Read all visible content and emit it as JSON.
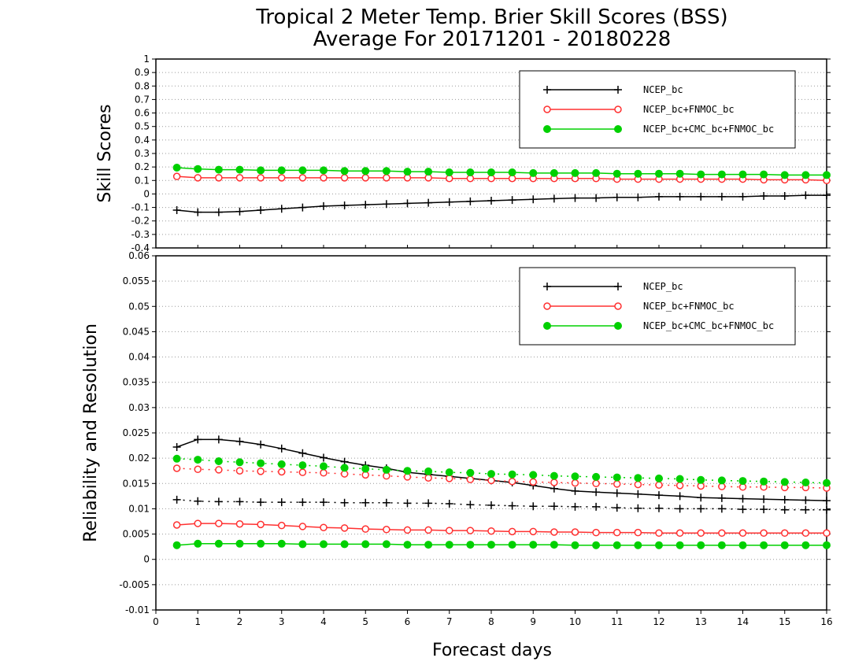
{
  "title": [
    "Tropical 2 Meter Temp. Brier Skill Scores (BSS)",
    "Average For 20171201 - 20180228"
  ],
  "chart_data": [
    {
      "type": "line",
      "ylabel": "Skill Scores",
      "xlabel": "",
      "xlim": [
        0,
        16
      ],
      "ylim": [
        -0.4,
        1
      ],
      "yticks": [
        -0.4,
        -0.3,
        -0.2,
        -0.1,
        0,
        0.1,
        0.2,
        0.3,
        0.4,
        0.5,
        0.6,
        0.7,
        0.8,
        0.9,
        1
      ],
      "ytick_labels": [
        "-0.4",
        "-0.3",
        "-0.2",
        "-0.1",
        "0",
        "0.1",
        "0.2",
        "0.3",
        "0.4",
        "0.5",
        "0.6",
        "0.7",
        "0.8",
        "0.9",
        "1"
      ],
      "grid": true,
      "legend_position": "top-right",
      "x": [
        0.5,
        1,
        1.5,
        2,
        2.5,
        3,
        3.5,
        4,
        4.5,
        5,
        5.5,
        6,
        6.5,
        7,
        7.5,
        8,
        8.5,
        9,
        9.5,
        10,
        10.5,
        11,
        11.5,
        12,
        12.5,
        13,
        13.5,
        14,
        14.5,
        15,
        15.5,
        16
      ],
      "series": [
        {
          "name": "NCEP_bc",
          "color": "#000000",
          "marker": "plus",
          "dash": "solid",
          "values": [
            -0.12,
            -0.135,
            -0.135,
            -0.13,
            -0.12,
            -0.11,
            -0.1,
            -0.09,
            -0.085,
            -0.08,
            -0.075,
            -0.07,
            -0.065,
            -0.06,
            -0.055,
            -0.05,
            -0.045,
            -0.04,
            -0.035,
            -0.03,
            -0.03,
            -0.025,
            -0.025,
            -0.02,
            -0.02,
            -0.02,
            -0.02,
            -0.02,
            -0.015,
            -0.015,
            -0.01,
            -0.01
          ]
        },
        {
          "name": "NCEP_bc+FNMOC_bc",
          "color": "#ff3030",
          "marker": "circle-open",
          "dash": "solid",
          "values": [
            0.13,
            0.12,
            0.12,
            0.12,
            0.12,
            0.12,
            0.12,
            0.12,
            0.12,
            0.12,
            0.12,
            0.12,
            0.12,
            0.115,
            0.115,
            0.115,
            0.115,
            0.115,
            0.115,
            0.115,
            0.115,
            0.11,
            0.11,
            0.11,
            0.11,
            0.11,
            0.11,
            0.11,
            0.105,
            0.105,
            0.105,
            0.1
          ]
        },
        {
          "name": "NCEP_bc+CMC_bc+FNMOC_bc",
          "color": "#00d000",
          "marker": "circle-filled",
          "dash": "solid",
          "values": [
            0.195,
            0.185,
            0.18,
            0.18,
            0.175,
            0.175,
            0.175,
            0.175,
            0.17,
            0.17,
            0.17,
            0.165,
            0.165,
            0.16,
            0.16,
            0.16,
            0.16,
            0.155,
            0.155,
            0.155,
            0.155,
            0.15,
            0.15,
            0.15,
            0.15,
            0.145,
            0.145,
            0.145,
            0.145,
            0.14,
            0.14,
            0.14
          ]
        }
      ]
    },
    {
      "type": "line",
      "ylabel": "Reliability and Resolution",
      "xlabel": "Forecast days",
      "xlim": [
        0,
        16
      ],
      "ylim": [
        -0.01,
        0.06
      ],
      "yticks": [
        -0.01,
        -0.005,
        0,
        0.005,
        0.01,
        0.015,
        0.02,
        0.025,
        0.03,
        0.035,
        0.04,
        0.045,
        0.05,
        0.055,
        0.06
      ],
      "ytick_labels": [
        "-0.01",
        "-0.005",
        "0",
        "0.005",
        "0.01",
        "0.015",
        "0.02",
        "0.025",
        "0.03",
        "0.035",
        "0.04",
        "0.045",
        "0.05",
        "0.055",
        "0.06"
      ],
      "xticks": [
        0,
        1,
        2,
        3,
        4,
        5,
        6,
        7,
        8,
        9,
        10,
        11,
        12,
        13,
        14,
        15,
        16
      ],
      "xtick_labels": [
        "0",
        "1",
        "2",
        "3",
        "4",
        "5",
        "6",
        "7",
        "8",
        "9",
        "10",
        "11",
        "12",
        "13",
        "14",
        "15",
        "16"
      ],
      "grid": true,
      "legend_position": "top-right",
      "x": [
        0.5,
        1,
        1.5,
        2,
        2.5,
        3,
        3.5,
        4,
        4.5,
        5,
        5.5,
        6,
        6.5,
        7,
        7.5,
        8,
        8.5,
        9,
        9.5,
        10,
        10.5,
        11,
        11.5,
        12,
        12.5,
        13,
        13.5,
        14,
        14.5,
        15,
        15.5,
        16
      ],
      "legend": [
        {
          "name": "NCEP_bc",
          "color": "#000000",
          "marker": "plus"
        },
        {
          "name": "NCEP_bc+FNMOC_bc",
          "color": "#ff3030",
          "marker": "circle-open"
        },
        {
          "name": "NCEP_bc+CMC_bc+FNMOC_bc",
          "color": "#00d000",
          "marker": "circle-filled"
        }
      ],
      "series": [
        {
          "group": "NCEP_bc",
          "kind": "resolution",
          "color": "#000000",
          "marker": "plus",
          "dash": "solid",
          "values": [
            0.0222,
            0.0237,
            0.0237,
            0.0233,
            0.0227,
            0.0219,
            0.021,
            0.0201,
            0.0193,
            0.0186,
            0.018,
            0.0172,
            0.0168,
            0.0164,
            0.016,
            0.0156,
            0.0152,
            0.0146,
            0.014,
            0.0135,
            0.0133,
            0.0131,
            0.0129,
            0.0127,
            0.0125,
            0.0122,
            0.0121,
            0.012,
            0.0119,
            0.0118,
            0.0117,
            0.0116
          ]
        },
        {
          "group": "NCEP_bc",
          "kind": "reliability",
          "color": "#000000",
          "marker": "plus",
          "dash": "dotted",
          "values": [
            0.0118,
            0.0115,
            0.0114,
            0.0114,
            0.0113,
            0.0113,
            0.0113,
            0.0113,
            0.0112,
            0.0112,
            0.0112,
            0.0111,
            0.0111,
            0.011,
            0.0108,
            0.0107,
            0.0106,
            0.0105,
            0.0105,
            0.0104,
            0.0104,
            0.0102,
            0.0101,
            0.0101,
            0.01,
            0.01,
            0.01,
            0.0099,
            0.0099,
            0.0098,
            0.0098,
            0.0098
          ]
        },
        {
          "group": "NCEP_bc+FNMOC_bc",
          "kind": "resolution",
          "color": "#ff3030",
          "marker": "circle-open",
          "dash": "dotted",
          "values": [
            0.018,
            0.0178,
            0.0177,
            0.0175,
            0.0174,
            0.0173,
            0.0172,
            0.0171,
            0.0169,
            0.0167,
            0.0165,
            0.0163,
            0.0161,
            0.016,
            0.0158,
            0.0156,
            0.0154,
            0.0153,
            0.0152,
            0.0151,
            0.015,
            0.0149,
            0.0148,
            0.0147,
            0.0146,
            0.0145,
            0.0144,
            0.0143,
            0.0143,
            0.0142,
            0.0142,
            0.0141
          ]
        },
        {
          "group": "NCEP_bc+FNMOC_bc",
          "kind": "reliability",
          "color": "#ff3030",
          "marker": "circle-open",
          "dash": "solid",
          "values": [
            0.0068,
            0.0071,
            0.0071,
            0.007,
            0.0069,
            0.0067,
            0.0065,
            0.0063,
            0.0062,
            0.006,
            0.0059,
            0.0058,
            0.0058,
            0.0057,
            0.0057,
            0.0056,
            0.0055,
            0.0055,
            0.0054,
            0.0054,
            0.0053,
            0.0053,
            0.0053,
            0.0052,
            0.0052,
            0.0052,
            0.0052,
            0.0052,
            0.0052,
            0.0052,
            0.0052,
            0.0052
          ]
        },
        {
          "group": "NCEP_bc+CMC_bc+FNMOC_bc",
          "kind": "resolution",
          "color": "#00d000",
          "marker": "circle-filled",
          "dash": "dotted",
          "values": [
            0.0199,
            0.0197,
            0.0194,
            0.0192,
            0.019,
            0.0188,
            0.0186,
            0.0184,
            0.0181,
            0.0179,
            0.0177,
            0.0175,
            0.0174,
            0.0172,
            0.0171,
            0.0169,
            0.0168,
            0.0167,
            0.0165,
            0.0164,
            0.0163,
            0.0162,
            0.0161,
            0.016,
            0.0159,
            0.0157,
            0.0156,
            0.0155,
            0.0154,
            0.0153,
            0.0152,
            0.0151
          ]
        },
        {
          "group": "NCEP_bc+CMC_bc+FNMOC_bc",
          "kind": "reliability",
          "color": "#00d000",
          "marker": "circle-filled",
          "dash": "solid",
          "values": [
            0.0028,
            0.0031,
            0.0031,
            0.0031,
            0.0031,
            0.0031,
            0.003,
            0.003,
            0.003,
            0.003,
            0.003,
            0.0029,
            0.0029,
            0.0029,
            0.0029,
            0.0029,
            0.0029,
            0.0029,
            0.0029,
            0.0028,
            0.0028,
            0.0028,
            0.0028,
            0.0028,
            0.0028,
            0.0028,
            0.0028,
            0.0028,
            0.0028,
            0.0028,
            0.0028,
            0.0028
          ]
        }
      ]
    }
  ]
}
